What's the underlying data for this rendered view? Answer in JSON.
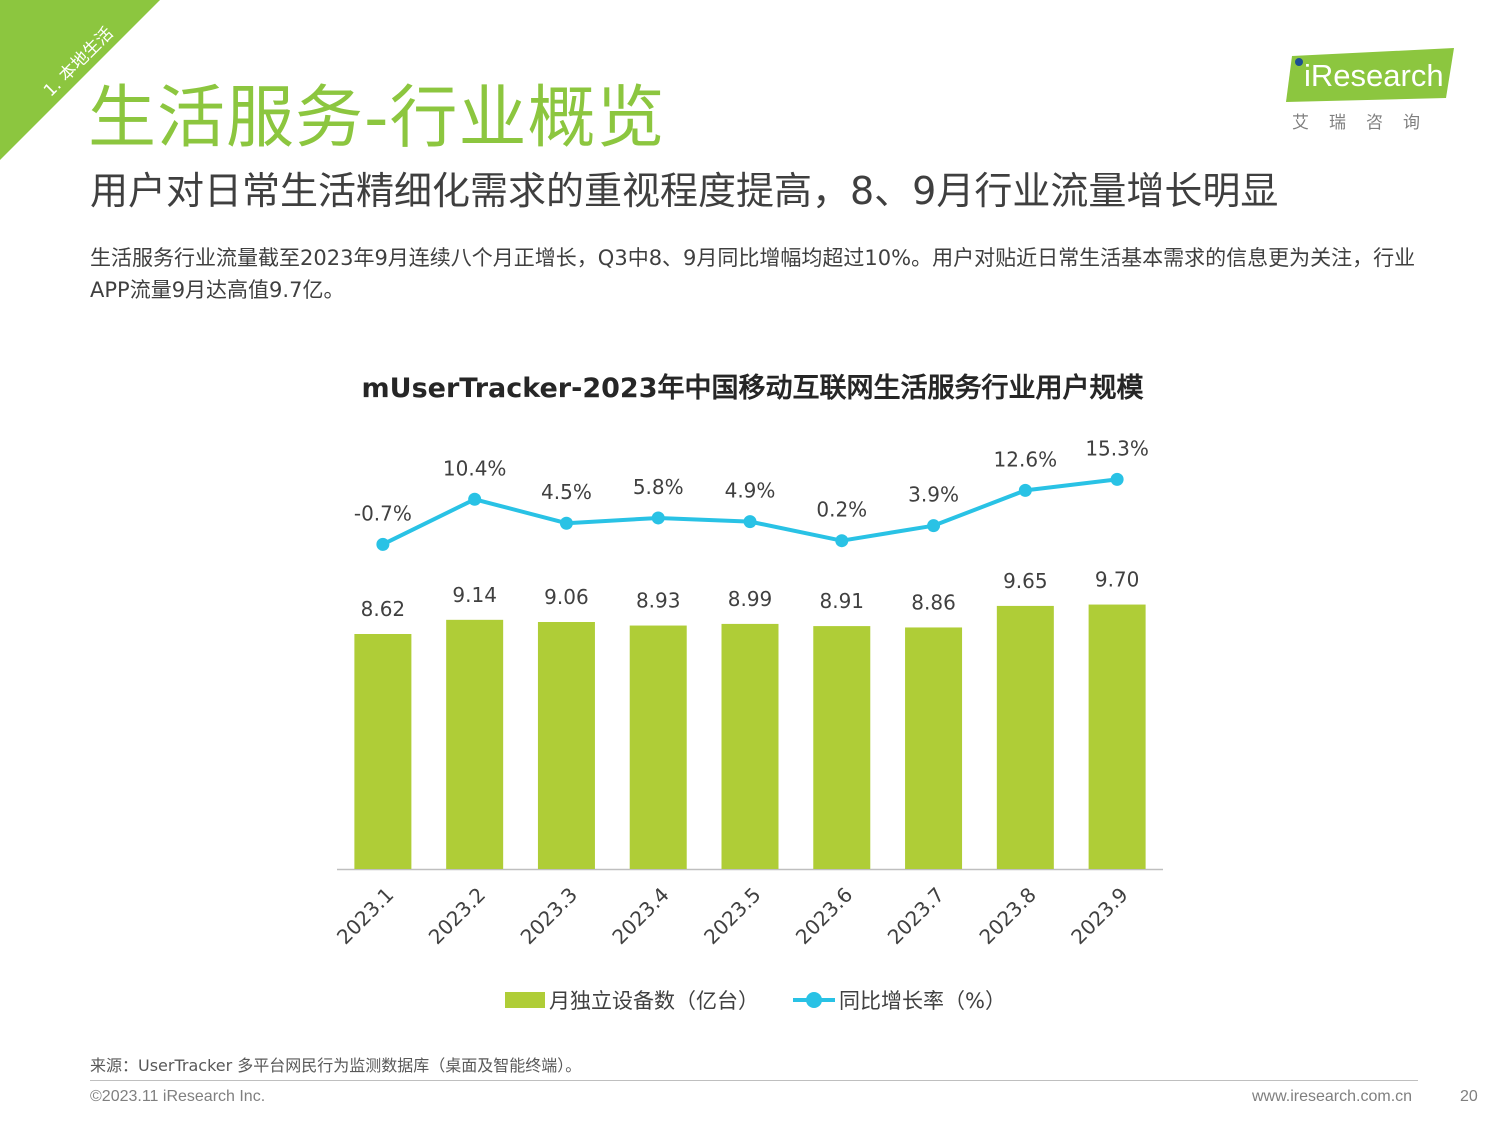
{
  "section_tag": "1. 本地生活",
  "title": "生活服务-行业概览",
  "subtitle": "用户对日常生活精细化需求的重视程度提高，8、9月行业流量增长明显",
  "description": "生活服务行业流量截至2023年9月连续八个月正增长，Q3中8、9月同比增幅均超过10%。用户对贴近日常生活基本需求的信息更为关注，行业APP流量9月达高值9.7亿。",
  "logo": {
    "name": "iResearch",
    "cn": "艾瑞咨询"
  },
  "colors": {
    "brand_green": "#8cc63f",
    "bar": "#afcd37",
    "line": "#29c2e5",
    "logo_dot": "#1d4f91"
  },
  "chart_data": {
    "type": "bar",
    "title": "mUserTracker-2023年中国移动互联网生活服务行业用户规模",
    "categories": [
      "2023.1",
      "2023.2",
      "2023.3",
      "2023.4",
      "2023.5",
      "2023.6",
      "2023.7",
      "2023.8",
      "2023.9"
    ],
    "series": [
      {
        "name": "月独立设备数（亿台）",
        "type": "bar",
        "values": [
          8.62,
          9.14,
          9.06,
          8.93,
          8.99,
          8.91,
          8.86,
          9.65,
          9.7
        ],
        "labels": [
          "8.62",
          "9.14",
          "9.06",
          "8.93",
          "8.99",
          "8.91",
          "8.86",
          "9.65",
          "9.70"
        ]
      },
      {
        "name": "同比增长率（%）",
        "type": "line",
        "values": [
          -0.7,
          10.4,
          4.5,
          5.8,
          4.9,
          0.2,
          3.9,
          12.6,
          15.3
        ],
        "labels": [
          "-0.7%",
          "10.4%",
          "4.5%",
          "5.8%",
          "4.9%",
          "0.2%",
          "3.9%",
          "12.6%",
          "15.3%"
        ]
      }
    ],
    "xlabel": "",
    "ylabel": "",
    "grid": false,
    "legend_position": "bottom"
  },
  "source": "来源：UserTracker 多平台网民行为监测数据库（桌面及智能终端）。",
  "footer": {
    "copyright": "©2023.11 iResearch Inc.",
    "website": "www.iresearch.com.cn",
    "page": "20"
  }
}
